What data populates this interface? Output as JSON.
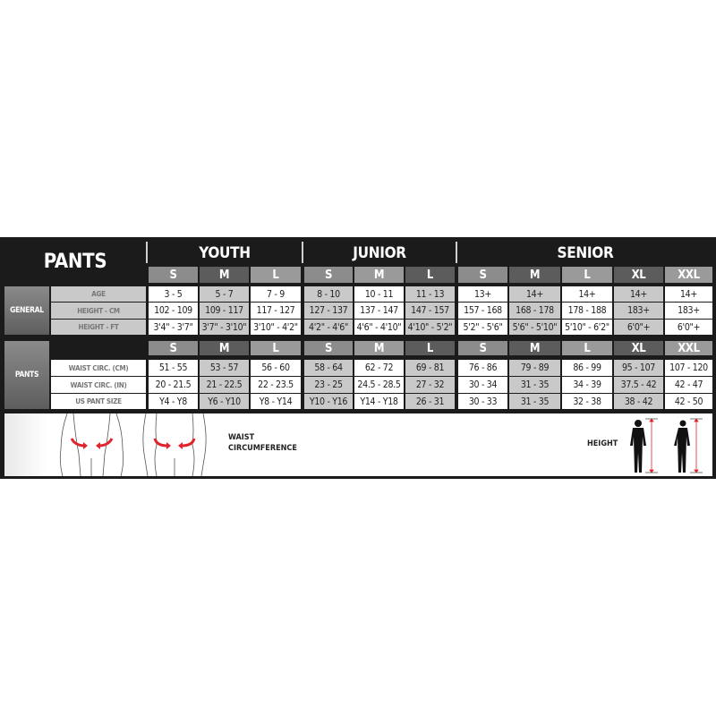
{
  "title": "PANTS",
  "groups": [
    {
      "name": "YOUTH",
      "sizes": [
        "S",
        "M",
        "L"
      ]
    },
    {
      "name": "JUNIOR",
      "sizes": [
        "S",
        "M",
        "L"
      ]
    },
    {
      "name": "SENIOR",
      "sizes": [
        "S",
        "M",
        "L",
        "XL",
        "XXL"
      ]
    }
  ],
  "sections": [
    {
      "label": "GENERAL",
      "rows": [
        {
          "label": "AGE",
          "values": [
            "3 - 5",
            "5 - 7",
            "7 - 9",
            "8 - 10",
            "10 - 11",
            "11 - 13",
            "13+",
            "14+",
            "14+",
            "14+",
            "14+"
          ]
        },
        {
          "label": "HEIGHT - CM",
          "values": [
            "102 - 109",
            "109 - 117",
            "117 - 127",
            "127 - 137",
            "137 - 147",
            "147 - 157",
            "157 - 168",
            "168 - 178",
            "178 - 188",
            "183+",
            "183+"
          ]
        },
        {
          "label": "HEIGHT - FT",
          "values": [
            "3'4\" - 3'7\"",
            "3'7\" - 3'10\"",
            "3'10\" - 4'2\"",
            "4'2\" - 4'6\"",
            "4'6\" - 4'10\"",
            "4'10\" - 5'2\"",
            "5'2\" - 5'6\"",
            "5'6\" - 5'10\"",
            "5'10\" - 6'2\"",
            "6'0\"+",
            "6'0\"+"
          ]
        }
      ]
    },
    {
      "label": "PANTS",
      "rows": [
        {
          "label": "WAIST CIRC. (CM)",
          "values": [
            "51 - 55",
            "53 - 57",
            "56 - 60",
            "58 - 64",
            "62 - 72",
            "69 - 81",
            "76 - 86",
            "79 - 89",
            "86 - 99",
            "95 - 107",
            "107 - 120"
          ]
        },
        {
          "label": "WAIST CIRC. (IN)",
          "values": [
            "20 - 21.5",
            "21 - 22.5",
            "22 - 23.5",
            "23 - 25",
            "24.5 - 28.5",
            "27 - 32",
            "30 - 34",
            "31 - 35",
            "34 - 39",
            "37.5 - 42",
            "42 - 47"
          ]
        },
        {
          "label": "US PANT SIZE",
          "values": [
            "Y4 - Y8",
            "Y6 - Y10",
            "Y8 - Y14",
            "Y10 - Y16",
            "Y14 - Y18",
            "26 - 31",
            "30 - 33",
            "31 - 35",
            "32 - 38",
            "38 - 42",
            "42 - 50"
          ]
        }
      ]
    }
  ],
  "figures": {
    "waist_label_1": "WAIST",
    "waist_label_2": "CIRCUMFERENCE",
    "height_label": "HEIGHT"
  },
  "colors": {
    "arrow": "#e0242b",
    "panel": "#1b1b1b"
  }
}
